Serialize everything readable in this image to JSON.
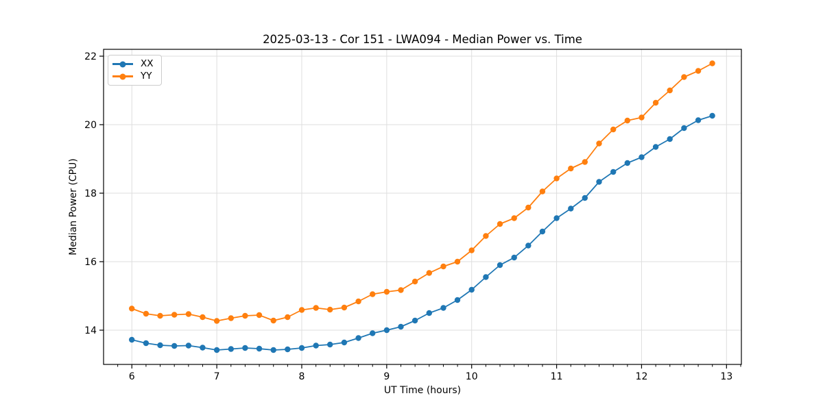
{
  "figure": {
    "title": "2025-03-13 - Cor 151 - LWA094 - Median Power vs. Time",
    "xlabel": "UT Time (hours)",
    "ylabel": "Median Power (CPU)"
  },
  "legend": {
    "position": "upper-left",
    "items": [
      {
        "label": "XX",
        "color": "#1f77b4"
      },
      {
        "label": "YY",
        "color": "#ff7f0e"
      }
    ]
  },
  "colors": {
    "series_xx": "#1f77b4",
    "series_yy": "#ff7f0e",
    "grid": "#dedede",
    "spine": "#000000",
    "background": "#ffffff"
  },
  "chart_data": {
    "type": "line",
    "title": "2025-03-13 - Cor 151 - LWA094 - Median Power vs. Time",
    "xlabel": "UT Time (hours)",
    "ylabel": "Median Power (CPU)",
    "grid": true,
    "legend_position": "upper left",
    "xlim": [
      5.667,
      13.175
    ],
    "ylim": [
      13.0,
      22.2
    ],
    "xticks": [
      6,
      7,
      8,
      9,
      10,
      11,
      12,
      13
    ],
    "yticks": [
      14,
      16,
      18,
      20,
      22
    ],
    "minor_xtick_step": 0.16667,
    "marker": "circle",
    "x": [
      6.0,
      6.167,
      6.333,
      6.5,
      6.667,
      6.833,
      7.0,
      7.167,
      7.333,
      7.5,
      7.667,
      7.833,
      8.0,
      8.167,
      8.333,
      8.5,
      8.667,
      8.833,
      9.0,
      9.167,
      9.333,
      9.5,
      9.667,
      9.833,
      10.0,
      10.167,
      10.333,
      10.5,
      10.667,
      10.833,
      11.0,
      11.167,
      11.333,
      11.5,
      11.667,
      11.833,
      12.0,
      12.167,
      12.333,
      12.5,
      12.667,
      12.833
    ],
    "series": [
      {
        "name": "XX",
        "color": "#1f77b4",
        "values": [
          13.72,
          13.62,
          13.56,
          13.54,
          13.55,
          13.49,
          13.42,
          13.45,
          13.48,
          13.46,
          13.42,
          13.44,
          13.48,
          13.55,
          13.58,
          13.64,
          13.77,
          13.91,
          14.0,
          14.1,
          14.28,
          14.5,
          14.65,
          14.88,
          15.18,
          15.55,
          15.9,
          16.12,
          16.47,
          16.88,
          17.27,
          17.55,
          17.86,
          18.33,
          18.62,
          18.88,
          19.05,
          19.35,
          19.58,
          19.9,
          20.13,
          20.26
        ]
      },
      {
        "name": "YY",
        "color": "#ff7f0e",
        "values": [
          14.63,
          14.48,
          14.42,
          14.45,
          14.47,
          14.38,
          14.27,
          14.35,
          14.42,
          14.44,
          14.28,
          14.38,
          14.59,
          14.65,
          14.6,
          14.66,
          14.84,
          15.05,
          15.12,
          15.17,
          15.42,
          15.67,
          15.86,
          16.0,
          16.33,
          16.75,
          17.1,
          17.27,
          17.58,
          18.05,
          18.43,
          18.72,
          18.91,
          19.45,
          19.86,
          20.12,
          20.21,
          20.64,
          21.0,
          21.39,
          21.57,
          21.79
        ]
      }
    ]
  }
}
